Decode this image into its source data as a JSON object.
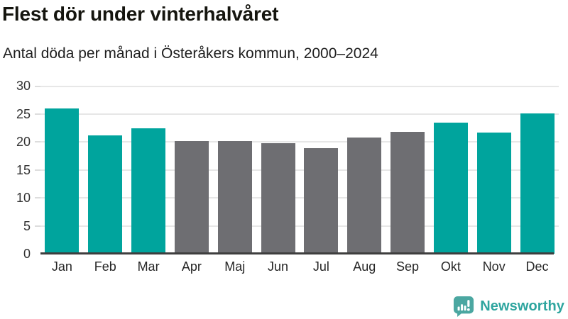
{
  "header": {
    "title": "Flest dör under vinterhalvåret",
    "subtitle": "Antal döda per månad i Österåkers kommun, 2000–2024"
  },
  "chart_data": {
    "type": "bar",
    "title": "Flest dör under vinterhalvåret",
    "subtitle": "Antal döda per månad i Österåkers kommun, 2000–2024",
    "categories": [
      "Jan",
      "Feb",
      "Mar",
      "Apr",
      "Maj",
      "Jun",
      "Jul",
      "Aug",
      "Sep",
      "Okt",
      "Nov",
      "Dec"
    ],
    "values": [
      26.0,
      21.1,
      22.4,
      20.1,
      20.1,
      19.7,
      18.9,
      20.7,
      21.8,
      23.4,
      21.6,
      25.1
    ],
    "highlighted": [
      true,
      true,
      true,
      false,
      false,
      false,
      false,
      false,
      false,
      true,
      true,
      true
    ],
    "xlabel": "",
    "ylabel": "",
    "ylim": [
      0,
      30
    ],
    "yticks": [
      0,
      5,
      10,
      15,
      20,
      25,
      30
    ],
    "grid": true,
    "legend": false,
    "colors": {
      "highlight": "#00a49d",
      "base": "#6e6e72",
      "gridline": "#e7e7e7",
      "axis": "#3e3e3e"
    }
  },
  "branding": {
    "logo_text": "Newsworthy",
    "logo_icon": "speech-bubble-bar-chart-icon",
    "logo_text_color": "#2ea59f",
    "logo_icon_color": "#4ba7a1"
  }
}
